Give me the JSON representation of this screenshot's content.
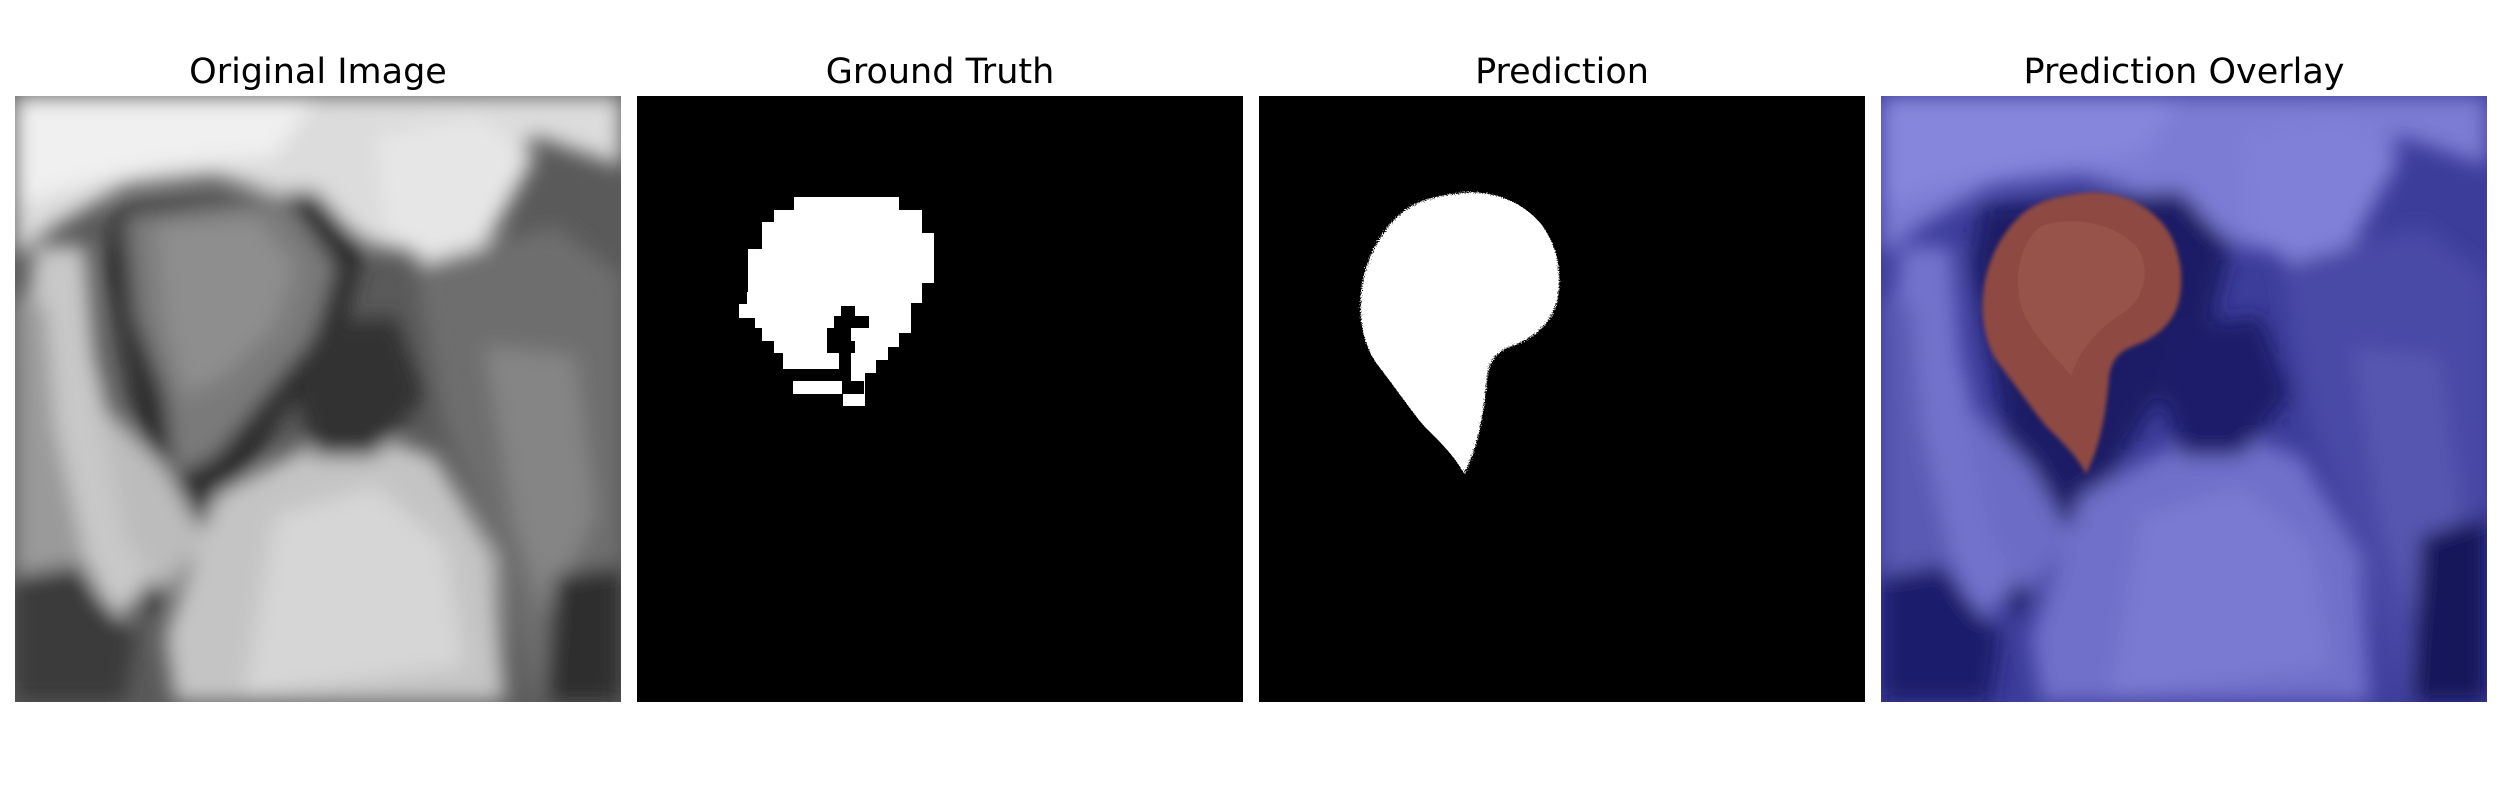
{
  "panels": [
    {
      "title": "Original Image"
    },
    {
      "title": "Ground Truth"
    },
    {
      "title": "Prediction"
    },
    {
      "title": "Prediction Overlay"
    }
  ],
  "colors": {
    "background": "#ffffff",
    "mask_foreground": "#ffffff",
    "mask_background": "#000000",
    "overlay_tissue": "#6a6ad0",
    "overlay_dark": "#14145a",
    "overlay_prediction": "#8e4a42"
  }
}
